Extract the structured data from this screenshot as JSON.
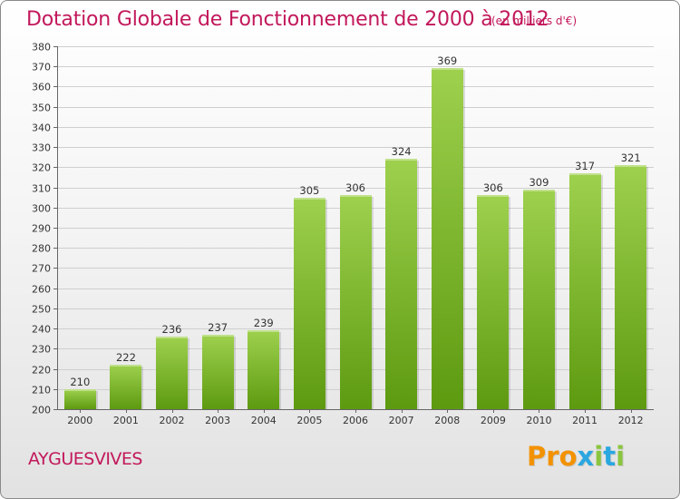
{
  "header": {
    "title": "Dotation Globale de Fonctionnement de 2000 à 2012",
    "subtitle": "(en milliers d'€)"
  },
  "footer": {
    "place": "AYGUESVIVES",
    "logo_letters": [
      "P",
      "r",
      "o",
      "x",
      "i",
      "t",
      "i"
    ],
    "logo_colors": [
      "#f39200",
      "#f39200",
      "#f39200",
      "#2aa7e0",
      "#8bc53f",
      "#2aa7e0",
      "#8bc53f"
    ]
  },
  "colors": {
    "title": "#c2185b",
    "bar_light": "#9ed14e",
    "bar_dark": "#5d9a10",
    "grid": "#cfcfcf"
  },
  "chart_data": {
    "type": "bar",
    "title": "Dotation Globale de Fonctionnement de 2000 à 2012",
    "subtitle": "(en milliers d'€)",
    "xlabel": "",
    "ylabel": "",
    "categories": [
      "2000",
      "2001",
      "2002",
      "2003",
      "2004",
      "2005",
      "2006",
      "2007",
      "2008",
      "2009",
      "2010",
      "2011",
      "2012"
    ],
    "values": [
      210,
      222,
      236,
      237,
      239,
      305,
      306,
      324,
      369,
      306,
      309,
      317,
      321
    ],
    "ylim": [
      200,
      380
    ],
    "ytick_step": 10,
    "grid": true,
    "legend": "none"
  }
}
